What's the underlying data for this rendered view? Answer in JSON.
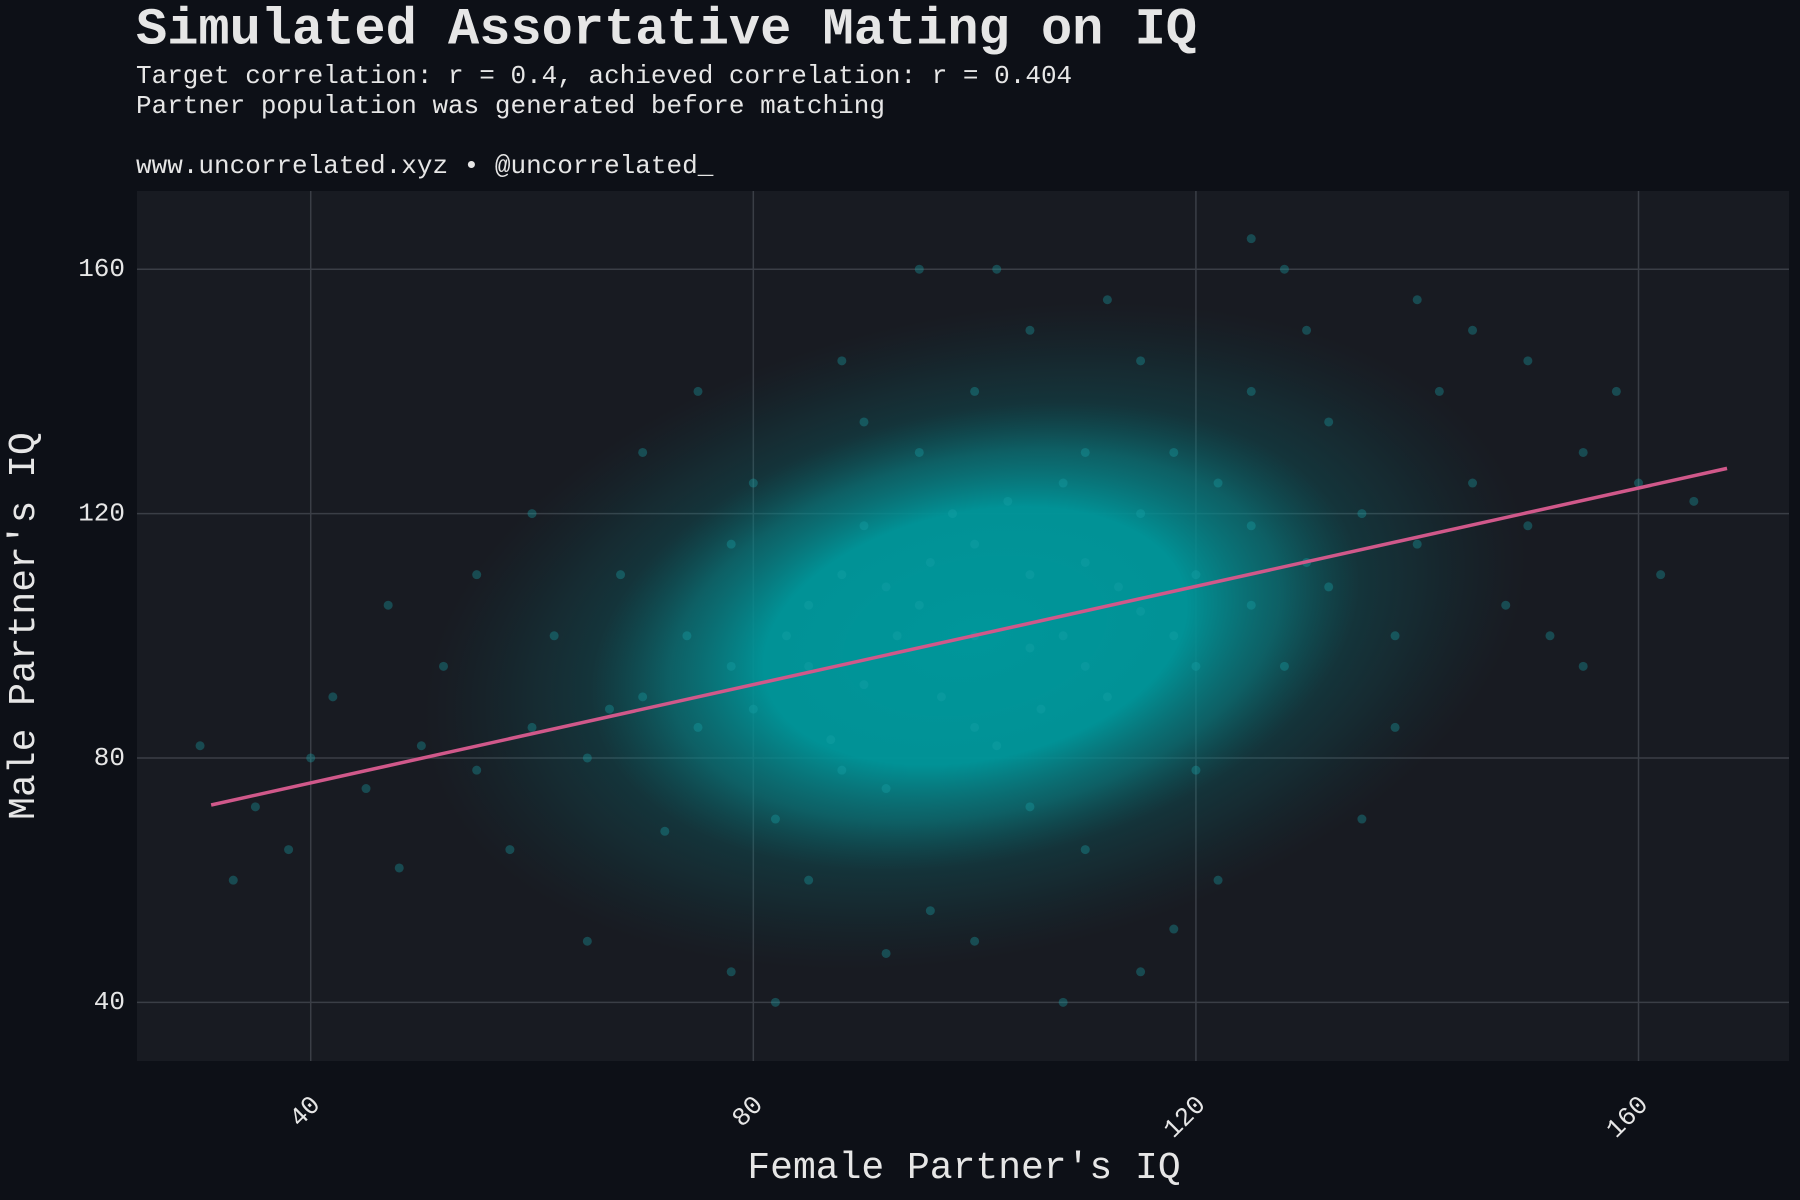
{
  "chart_data": {
    "type": "scatter",
    "title": "Simulated Assortative Mating on IQ",
    "subtitle": [
      "Target correlation: r = 0.4, achieved correlation: r = 0.404",
      "Partner population was generated before matching"
    ],
    "caption": "www.uncorrelated.xyz • @uncorrelated_",
    "x_label": "Female Partner's IQ",
    "y_label": "Male Partner's IQ",
    "xlim": [
      24.3,
      173.6
    ],
    "ylim": [
      30.4,
      172.8
    ],
    "xticks": [
      40,
      80,
      120,
      160
    ],
    "yticks": [
      40,
      80,
      120,
      160
    ],
    "grid": true,
    "series": [
      {
        "type": "scatter",
        "color": "#19a4a8",
        "x": [
          100,
          95,
          105,
          110,
          90,
          85,
          115,
          120,
          80,
          98,
          102,
          108,
          92,
          125,
          75,
          88,
          112,
          118,
          82,
          130,
          70,
          95,
          105,
          135,
          65,
          100,
          110,
          140,
          60,
          90,
          120,
          145,
          55,
          85,
          125,
          150,
          50,
          78,
          128,
          138,
          62,
          96,
          115,
          155,
          45,
          72,
          132,
          148,
          58,
          105,
          92,
          142,
          40,
          68,
          122,
          160,
          35,
          80,
          112,
          138,
          52,
          100,
          130,
          152,
          48,
          75,
          118,
          165,
          42,
          88,
          108,
          145,
          30,
          65,
          125,
          158,
          55,
          82,
          135,
          150,
          60,
          95,
          115,
          162,
          38,
          70,
          128,
          140,
          47,
          102,
          78,
          155,
          33,
          110,
          90,
          100,
          105,
          93,
          115,
          87,
          120,
          97,
          108,
          83,
          113,
          100,
          118,
          85,
          125,
          78,
          106,
          96,
          132,
          74,
          110,
          92,
          103,
          88,
          122,
          67
        ],
        "values": [
          100,
          105,
          98,
          112,
          92,
          95,
          104,
          110,
          88,
          120,
          82,
          125,
          75,
          118,
          85,
          110,
          90,
          130,
          70,
          112,
          90,
          130,
          72,
          120,
          80,
          140,
          65,
          115,
          85,
          135,
          78,
          125,
          78,
          60,
          140,
          118,
          82,
          115,
          95,
          100,
          100,
          55,
          145,
          130,
          75,
          68,
          135,
          105,
          65,
          150,
          48,
          140,
          80,
          110,
          60,
          125,
          72,
          125,
          155,
          85,
          95,
          50,
          150,
          100,
          62,
          140,
          52,
          122,
          90,
          145,
          40,
          150,
          82,
          50,
          165,
          140,
          110,
          40,
          70,
          145,
          120,
          160,
          45,
          110,
          65,
          130,
          160,
          155,
          105,
          160,
          45,
          95,
          60,
          130,
          118,
          85,
          110,
          100,
          120,
          83,
          95,
          90,
          100,
          100,
          108,
          115,
          100,
          105,
          105,
          95,
          88,
          112,
          108,
          100,
          95,
          108,
          122,
          78,
          125,
          88
        ]
      },
      {
        "type": "line",
        "color": "#d0588a",
        "x": [
          31,
          168
        ],
        "values": [
          72.3,
          127.4
        ]
      }
    ]
  }
}
